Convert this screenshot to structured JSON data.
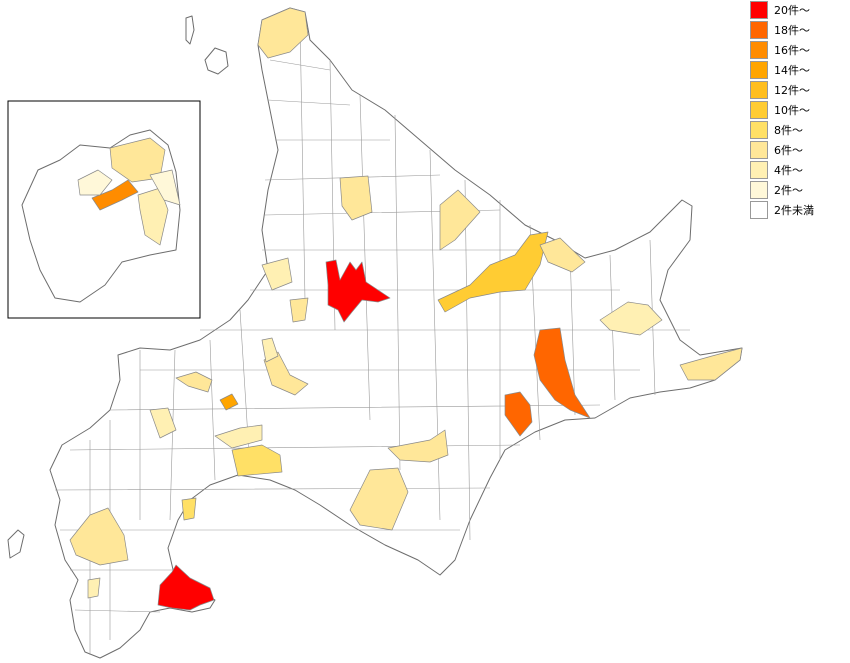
{
  "legend": {
    "items": [
      {
        "label": "20件～",
        "color": "#ff0000"
      },
      {
        "label": "18件～",
        "color": "#ff6600"
      },
      {
        "label": "16件～",
        "color": "#ff8c00"
      },
      {
        "label": "14件～",
        "color": "#ffa500"
      },
      {
        "label": "12件～",
        "color": "#ffbe1e"
      },
      {
        "label": "10件～",
        "color": "#ffcc33"
      },
      {
        "label": "8件～",
        "color": "#ffe066"
      },
      {
        "label": "6件～",
        "color": "#ffe799"
      },
      {
        "label": "4件～",
        "color": "#fff0b3"
      },
      {
        "label": "2件～",
        "color": "#fff8d9"
      },
      {
        "label": "2件未満",
        "color": "#ffffff"
      }
    ]
  },
  "regions": [
    {
      "name": "asahikawa",
      "level": "20件～"
    },
    {
      "name": "hakodate",
      "level": "20件～"
    },
    {
      "name": "obihiro",
      "level": "18件～"
    },
    {
      "name": "kushiro-coast",
      "level": "18件～"
    },
    {
      "name": "sapporo-inset-district",
      "level": "16件～"
    },
    {
      "name": "kitami",
      "level": "10件～"
    },
    {
      "name": "wakkanai",
      "level": "8件～"
    }
  ]
}
